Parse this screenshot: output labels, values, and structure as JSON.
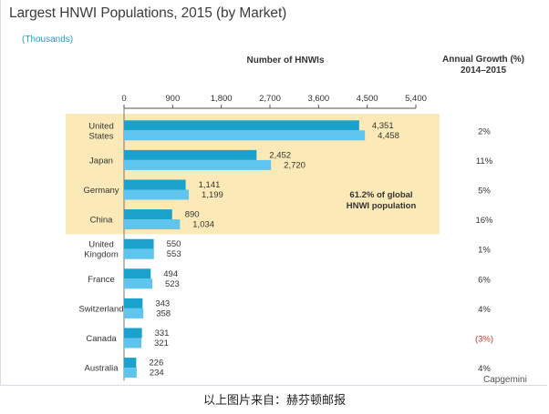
{
  "title": "Largest HNWI Populations, 2015 (by Market)",
  "units_note": "(Thousands)",
  "growth_header_line1": "Annual Growth (%)",
  "growth_header_line2": "2014–2015",
  "footer_text": "以上图片来自：赫芬顿邮报",
  "source_text": "Capgemini",
  "annotation": {
    "line1": "61.2% of global",
    "line2": "HNWI population"
  },
  "colors": {
    "bar_2014": "#1aa2cc",
    "bar_2015": "#5fc4ee",
    "highlight": "#fbeab8",
    "negative_growth": "#c0392b"
  },
  "chart_data": {
    "type": "bar",
    "orientation": "horizontal",
    "xlabel": "Number of HNWIs",
    "xlim": [
      0,
      5400
    ],
    "xticks": [
      0,
      900,
      1800,
      2700,
      3600,
      4500,
      5400
    ],
    "xtick_labels": [
      "0",
      "900",
      "1,800",
      "2,700",
      "3,600",
      "4,500",
      "5,400"
    ],
    "grid": false,
    "categories": [
      [
        "United",
        "States"
      ],
      [
        "Japan"
      ],
      [
        "Germany"
      ],
      [
        "China"
      ],
      [
        "United",
        "Kingdom"
      ],
      [
        "France"
      ],
      [
        "Switzerland"
      ],
      [
        "Canada"
      ],
      [
        "Australia"
      ]
    ],
    "series": [
      {
        "values": [
          4351,
          2452,
          1141,
          890,
          550,
          494,
          343,
          331,
          226
        ],
        "labels": [
          "4,351",
          "2,452",
          "1,141",
          "890",
          "550",
          "494",
          "343",
          "331",
          "226"
        ]
      },
      {
        "values": [
          4458,
          2720,
          1199,
          1034,
          553,
          523,
          358,
          321,
          234
        ],
        "labels": [
          "4,458",
          "2,720",
          "1,199",
          "1,034",
          "553",
          "523",
          "358",
          "321",
          "234"
        ]
      }
    ],
    "annual_growth": [
      "2%",
      "11%",
      "5%",
      "16%",
      "1%",
      "6%",
      "4%",
      "(3%)",
      "4%"
    ],
    "annual_growth_values": [
      2,
      11,
      5,
      16,
      1,
      6,
      4,
      -3,
      4
    ],
    "highlighted_markets": 4
  }
}
